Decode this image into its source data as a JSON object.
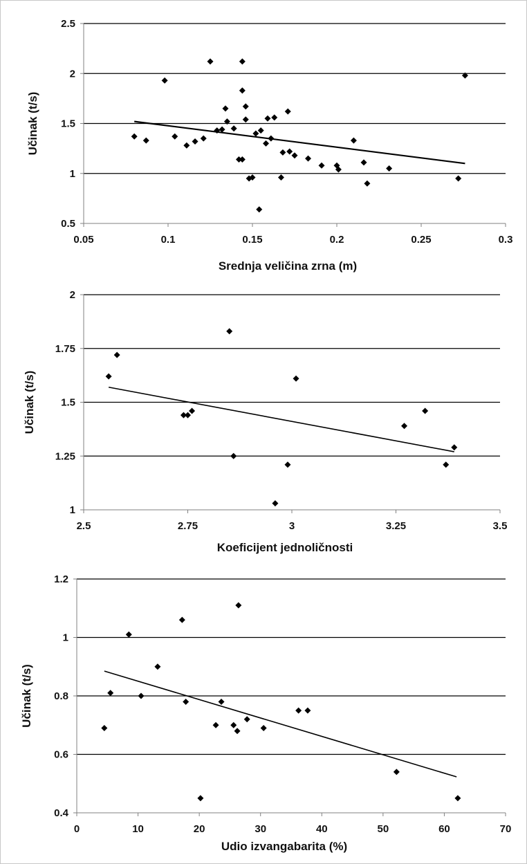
{
  "chart_data": [
    {
      "type": "scatter",
      "title": "",
      "xlabel": "Srednja veličina zrna (m)",
      "ylabel": "Učinak (t/s)",
      "xlim": [
        0.05,
        0.3
      ],
      "ylim": [
        0.5,
        2.5
      ],
      "xticks": [
        0.05,
        0.1,
        0.15,
        0.2,
        0.25,
        0.3
      ],
      "xtick_labels": [
        "0.05",
        "0.1",
        "0.15",
        "0.2",
        "0.25",
        "0.3"
      ],
      "yticks": [
        0.5,
        1,
        1.5,
        2,
        2.5
      ],
      "ytick_labels": [
        "0.5",
        "1",
        "1.5",
        "2",
        "2.5"
      ],
      "grid": "horizontal",
      "trendline": {
        "x": [
          0.08,
          0.276
        ],
        "y": [
          1.52,
          1.1
        ]
      },
      "points": [
        {
          "x": 0.08,
          "y": 1.37
        },
        {
          "x": 0.087,
          "y": 1.33
        },
        {
          "x": 0.098,
          "y": 1.93
        },
        {
          "x": 0.104,
          "y": 1.37
        },
        {
          "x": 0.111,
          "y": 1.28
        },
        {
          "x": 0.116,
          "y": 1.32
        },
        {
          "x": 0.121,
          "y": 1.35
        },
        {
          "x": 0.125,
          "y": 2.12
        },
        {
          "x": 0.129,
          "y": 1.43
        },
        {
          "x": 0.132,
          "y": 1.44
        },
        {
          "x": 0.134,
          "y": 1.65
        },
        {
          "x": 0.135,
          "y": 1.52
        },
        {
          "x": 0.139,
          "y": 1.45
        },
        {
          "x": 0.142,
          "y": 1.14
        },
        {
          "x": 0.144,
          "y": 1.14
        },
        {
          "x": 0.144,
          "y": 2.12
        },
        {
          "x": 0.144,
          "y": 1.83
        },
        {
          "x": 0.146,
          "y": 1.67
        },
        {
          "x": 0.146,
          "y": 1.54
        },
        {
          "x": 0.148,
          "y": 0.95
        },
        {
          "x": 0.15,
          "y": 0.96
        },
        {
          "x": 0.152,
          "y": 1.4
        },
        {
          "x": 0.154,
          "y": 0.64
        },
        {
          "x": 0.155,
          "y": 1.43
        },
        {
          "x": 0.158,
          "y": 1.3
        },
        {
          "x": 0.159,
          "y": 1.55
        },
        {
          "x": 0.161,
          "y": 1.35
        },
        {
          "x": 0.163,
          "y": 1.56
        },
        {
          "x": 0.167,
          "y": 0.96
        },
        {
          "x": 0.168,
          "y": 1.21
        },
        {
          "x": 0.171,
          "y": 1.62
        },
        {
          "x": 0.172,
          "y": 1.22
        },
        {
          "x": 0.175,
          "y": 1.18
        },
        {
          "x": 0.183,
          "y": 1.15
        },
        {
          "x": 0.191,
          "y": 1.08
        },
        {
          "x": 0.2,
          "y": 1.08
        },
        {
          "x": 0.201,
          "y": 1.04
        },
        {
          "x": 0.21,
          "y": 1.33
        },
        {
          "x": 0.216,
          "y": 1.11
        },
        {
          "x": 0.218,
          "y": 0.9
        },
        {
          "x": 0.231,
          "y": 1.05
        },
        {
          "x": 0.272,
          "y": 0.95
        },
        {
          "x": 0.276,
          "y": 1.98
        }
      ]
    },
    {
      "type": "scatter",
      "title": "",
      "xlabel": "Koeficijent jednoličnosti",
      "ylabel": "Učinak (t/s)",
      "xlim": [
        2.5,
        3.5
      ],
      "ylim": [
        1,
        2
      ],
      "xticks": [
        2.5,
        2.75,
        3,
        3.25,
        3.5
      ],
      "xtick_labels": [
        "2.5",
        "2.75",
        "3",
        "3.25",
        "3.5"
      ],
      "yticks": [
        1,
        1.25,
        1.5,
        1.75,
        2
      ],
      "ytick_labels": [
        "1",
        "1.25",
        "1.5",
        "1.75",
        "2"
      ],
      "grid": "horizontal",
      "trendline": {
        "x": [
          2.56,
          3.39
        ],
        "y": [
          1.57,
          1.27
        ]
      },
      "points": [
        {
          "x": 2.56,
          "y": 1.62
        },
        {
          "x": 2.58,
          "y": 1.72
        },
        {
          "x": 2.74,
          "y": 1.44
        },
        {
          "x": 2.75,
          "y": 1.44
        },
        {
          "x": 2.76,
          "y": 1.46
        },
        {
          "x": 2.85,
          "y": 1.83
        },
        {
          "x": 2.86,
          "y": 1.25
        },
        {
          "x": 2.96,
          "y": 1.03
        },
        {
          "x": 2.99,
          "y": 1.21
        },
        {
          "x": 3.01,
          "y": 1.61
        },
        {
          "x": 3.27,
          "y": 1.39
        },
        {
          "x": 3.32,
          "y": 1.46
        },
        {
          "x": 3.37,
          "y": 1.21
        },
        {
          "x": 3.39,
          "y": 1.29
        }
      ]
    },
    {
      "type": "scatter",
      "title": "",
      "xlabel": "Udio izvangabarita (%)",
      "ylabel": "Učinak (t/s)",
      "xlim": [
        0,
        70
      ],
      "ylim": [
        0.4,
        1.2
      ],
      "xticks": [
        0,
        10,
        20,
        30,
        40,
        50,
        60,
        70
      ],
      "xtick_labels": [
        "0",
        "10",
        "20",
        "30",
        "40",
        "50",
        "60",
        "70"
      ],
      "yticks": [
        0.4,
        0.6,
        0.8,
        1,
        1.2
      ],
      "ytick_labels": [
        "0.4",
        "0.6",
        "0.8",
        "1",
        "1.2"
      ],
      "grid": "horizontal",
      "trendline": {
        "x": [
          4.5,
          62
        ],
        "y": [
          0.885,
          0.523
        ]
      },
      "points": [
        {
          "x": 4.5,
          "y": 0.69
        },
        {
          "x": 5.5,
          "y": 0.81
        },
        {
          "x": 8.5,
          "y": 1.01
        },
        {
          "x": 10.5,
          "y": 0.8
        },
        {
          "x": 13.2,
          "y": 0.9
        },
        {
          "x": 17.2,
          "y": 1.06
        },
        {
          "x": 17.8,
          "y": 0.78
        },
        {
          "x": 20.2,
          "y": 0.45
        },
        {
          "x": 22.7,
          "y": 0.7
        },
        {
          "x": 23.6,
          "y": 0.78
        },
        {
          "x": 25.6,
          "y": 0.7
        },
        {
          "x": 26.2,
          "y": 0.68
        },
        {
          "x": 26.4,
          "y": 1.11
        },
        {
          "x": 27.8,
          "y": 0.72
        },
        {
          "x": 30.5,
          "y": 0.69
        },
        {
          "x": 36.2,
          "y": 0.75
        },
        {
          "x": 37.7,
          "y": 0.75
        },
        {
          "x": 52.2,
          "y": 0.54
        },
        {
          "x": 62.2,
          "y": 0.45
        }
      ]
    }
  ]
}
